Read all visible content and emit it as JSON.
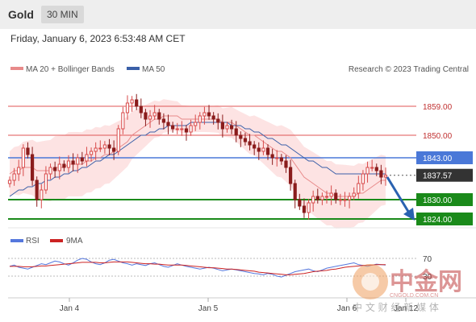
{
  "header": {
    "symbol": "Gold",
    "timeframe": "30 MIN"
  },
  "datetime": "Friday, January 6, 2023 6:53:48 AM CET",
  "legend": {
    "ma20": "MA 20 + Bollinger Bands",
    "ma50": "MA 50",
    "research": "Research © 2023 Trading Central",
    "rsi": "RSI",
    "ma9": "9MA"
  },
  "watermark": {
    "cn": "中金网",
    "url": "CNGOLD.COM.CN",
    "sub": "中 文 财 经 新 媒 体"
  },
  "colors": {
    "ma20": "#e88a8a",
    "ma50": "#3a5fa8",
    "band": "#fddcdc",
    "support": "#1a8a1a",
    "resistance": "#e05555",
    "pivot": "#4a78d8",
    "current": "#333333",
    "arrow": "#2a62b0",
    "rsi": "#5577dd",
    "ma9": "#cc2222"
  },
  "chart_data": [
    {
      "type": "candlestick",
      "x_ticks": [
        "Jan 4",
        "Jan 5",
        "Jan 6",
        "Jan 12"
      ],
      "ylim": [
        1815,
        1870
      ],
      "levels": [
        {
          "value": 1859.0,
          "label": "1859.00",
          "kind": "resistance"
        },
        {
          "value": 1850.0,
          "label": "1850.00",
          "kind": "resistance"
        },
        {
          "value": 1843.0,
          "label": "1843.00",
          "kind": "pivot"
        },
        {
          "value": 1837.57,
          "label": "1837.57",
          "kind": "current"
        },
        {
          "value": 1830.0,
          "label": "1830.00",
          "kind": "support"
        },
        {
          "value": 1824.0,
          "label": "1824.00",
          "kind": "support"
        }
      ],
      "close_approx": [
        1836,
        1838,
        1840,
        1846,
        1844,
        1836,
        1830,
        1833,
        1838,
        1840,
        1839,
        1841,
        1840,
        1842,
        1841,
        1843,
        1842,
        1844,
        1845,
        1846,
        1846,
        1847,
        1846,
        1845,
        1852,
        1857,
        1860,
        1861,
        1859,
        1857,
        1855,
        1856,
        1857,
        1855,
        1854,
        1853,
        1852,
        1852,
        1852,
        1851,
        1853,
        1854,
        1856,
        1857,
        1856,
        1855,
        1854,
        1852,
        1853,
        1852,
        1850,
        1849,
        1848,
        1847,
        1846,
        1845,
        1846,
        1844,
        1843,
        1843,
        1842,
        1840,
        1835,
        1830,
        1828,
        1826,
        1829,
        1831,
        1830,
        1831,
        1831,
        1832,
        1830,
        1830,
        1830,
        1831,
        1832,
        1835,
        1838,
        1840,
        1840,
        1839,
        1837,
        1837.57
      ],
      "ma20_approx": [
        1838,
        1839,
        1839,
        1840,
        1840,
        1840,
        1839,
        1839,
        1839,
        1839,
        1840,
        1840,
        1840,
        1841,
        1841,
        1841,
        1841,
        1842,
        1842,
        1843,
        1843,
        1844,
        1844,
        1845,
        1846,
        1847,
        1848,
        1850,
        1851,
        1852,
        1853,
        1854,
        1855,
        1855,
        1856,
        1856,
        1856,
        1856,
        1855,
        1855,
        1855,
        1855,
        1855,
        1855,
        1855,
        1855,
        1855,
        1854,
        1854,
        1854,
        1853,
        1852,
        1851,
        1850,
        1850,
        1849,
        1848,
        1847,
        1846,
        1845,
        1845,
        1844,
        1843,
        1841,
        1839,
        1837,
        1836,
        1835,
        1834,
        1833,
        1832,
        1832,
        1831,
        1831,
        1831,
        1831,
        1831,
        1832,
        1832,
        1833,
        1834,
        1835,
        1836,
        1836
      ],
      "ma50_approx": [
        1831,
        1832,
        1833,
        1833,
        1834,
        1834,
        1835,
        1835,
        1836,
        1836,
        1837,
        1837,
        1838,
        1838,
        1839,
        1839,
        1840,
        1840,
        1841,
        1842,
        1842,
        1843,
        1844,
        1844,
        1845,
        1846,
        1847,
        1848,
        1849,
        1850,
        1850,
        1851,
        1851,
        1852,
        1852,
        1853,
        1853,
        1853,
        1853,
        1853,
        1854,
        1854,
        1854,
        1854,
        1854,
        1854,
        1854,
        1854,
        1854,
        1853,
        1853,
        1853,
        1852,
        1852,
        1851,
        1851,
        1850,
        1849,
        1849,
        1848,
        1847,
        1847,
        1846,
        1845,
        1844,
        1843,
        1842,
        1842,
        1841,
        1840,
        1840,
        1839,
        1838,
        1838,
        1838,
        1838,
        1838,
        1838,
        1838,
        1838,
        1838,
        1838,
        1838,
        1838
      ]
    },
    {
      "type": "line",
      "name_series": [
        "RSI",
        "9MA"
      ],
      "levels": [
        {
          "value": 70,
          "label": "70"
        },
        {
          "value": 30,
          "label": "30"
        }
      ],
      "ylim": [
        0,
        100
      ],
      "rsi_approx": [
        52,
        55,
        50,
        48,
        46,
        50,
        54,
        58,
        56,
        60,
        64,
        62,
        58,
        55,
        60,
        66,
        70,
        68,
        62,
        58,
        56,
        60,
        66,
        68,
        64,
        60,
        58,
        55,
        58,
        56,
        54,
        58,
        60,
        56,
        52,
        50,
        54,
        58,
        55,
        52,
        50,
        48,
        46,
        48,
        50,
        48,
        45,
        42,
        44,
        46,
        44,
        42,
        40,
        38,
        36,
        35,
        33,
        36,
        34,
        30,
        28,
        32,
        36,
        40,
        42,
        44,
        46,
        42,
        40,
        44,
        48,
        50,
        52,
        54,
        56,
        58,
        60,
        56,
        54,
        52,
        55,
        57,
        56,
        55
      ],
      "ma9_approx": [
        52,
        52,
        52,
        51,
        51,
        51,
        52,
        53,
        53,
        54,
        55,
        56,
        57,
        58,
        59,
        60,
        61,
        61,
        61,
        61,
        60,
        60,
        61,
        62,
        62,
        62,
        62,
        61,
        60,
        59,
        58,
        58,
        57,
        57,
        56,
        55,
        55,
        55,
        55,
        54,
        53,
        52,
        51,
        50,
        49,
        49,
        48,
        47,
        46,
        46,
        45,
        44,
        43,
        42,
        41,
        39,
        38,
        37,
        36,
        35,
        34,
        33,
        33,
        34,
        35,
        36,
        38,
        40,
        41,
        42,
        43,
        45,
        46,
        48,
        50,
        51,
        52,
        53,
        54,
        55,
        55,
        56,
        56,
        56
      ]
    }
  ]
}
